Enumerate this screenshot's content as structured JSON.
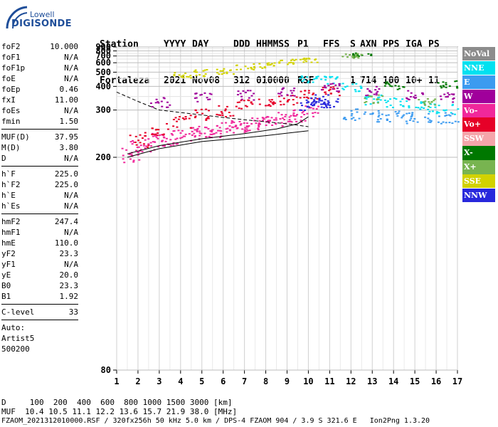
{
  "logo": {
    "brand": "Lowell",
    "product": "DIGISONDE"
  },
  "header": {
    "labels": [
      "Station",
      "YYYY",
      "DAY",
      "DDD",
      "HHMMSS",
      "P1",
      "FFS",
      "S",
      "AXN",
      "PPS",
      "IGA",
      "PS"
    ],
    "values": [
      "Fortaleza",
      "2021",
      "Nov08",
      "312",
      "010000",
      "RSF",
      "",
      "1",
      "714",
      "100",
      "10+",
      "11"
    ]
  },
  "params_block1": [
    {
      "name": "foF2",
      "value": "10.000"
    },
    {
      "name": "foF1",
      "value": "N/A"
    },
    {
      "name": "foF1p",
      "value": "N/A"
    },
    {
      "name": "foE",
      "value": "N/A"
    },
    {
      "name": "foEp",
      "value": "0.46"
    },
    {
      "name": "fxI",
      "value": "11.00"
    },
    {
      "name": "foEs",
      "value": "N/A"
    },
    {
      "name": "fmin",
      "value": "1.50"
    }
  ],
  "params_block2": [
    {
      "name": "MUF(D)",
      "value": "37.95"
    },
    {
      "name": "M(D)",
      "value": "3.80"
    },
    {
      "name": "D",
      "value": "N/A"
    }
  ],
  "params_block3": [
    {
      "name": "h`F",
      "value": "225.0"
    },
    {
      "name": "h`F2",
      "value": "225.0"
    },
    {
      "name": "h`E",
      "value": "N/A"
    },
    {
      "name": "h`Es",
      "value": "N/A"
    }
  ],
  "params_block4": [
    {
      "name": "hmF2",
      "value": "247.4"
    },
    {
      "name": "hmF1",
      "value": "N/A"
    },
    {
      "name": "hmE",
      "value": "110.0"
    },
    {
      "name": "yF2",
      "value": "23.3"
    },
    {
      "name": "yF1",
      "value": "N/A"
    },
    {
      "name": "yE",
      "value": "20.0"
    },
    {
      "name": "B0",
      "value": "23.3"
    },
    {
      "name": "B1",
      "value": "1.92"
    }
  ],
  "clevel": {
    "name": "C-level",
    "value": "33"
  },
  "auto": {
    "line1": "Auto:",
    "line2": "Artist5",
    "line3": "500200"
  },
  "legend": [
    {
      "label": "NoVal",
      "color": "#8c8c8c"
    },
    {
      "label": "NNE",
      "color": "#00e1f0"
    },
    {
      "label": "E",
      "color": "#3c9bf0"
    },
    {
      "label": "W",
      "color": "#a0009b"
    },
    {
      "label": "Vo-",
      "color": "#f0289b"
    },
    {
      "label": "Vo+",
      "color": "#e60028"
    },
    {
      "label": "SSW",
      "color": "#f5a5aa"
    },
    {
      "label": "X-",
      "color": "#007800"
    },
    {
      "label": "X+",
      "color": "#78b450"
    },
    {
      "label": "SSE",
      "color": "#d2d200"
    },
    {
      "label": "NNW",
      "color": "#2828dc"
    }
  ],
  "bottom": {
    "line1": "D     100  200  400  600  800 1000 1500 3000 [km]",
    "line2": "MUF  10.4 10.5 11.1 12.2 13.6 15.7 21.9 38.0 [MHz]",
    "line3": "FZAOM_2021312010000.RSF / 320fx256h 50 kHz 5.0 km / DPS-4 FZAOM 904 / 3.9 S 321.6 E   Ion2Png 1.3.20"
  },
  "chart_data": {
    "type": "scatter",
    "title": "",
    "xlabel": "",
    "ylabel": "",
    "xlim": [
      1,
      17
    ],
    "ylim": [
      80,
      900
    ],
    "x_ticks": [
      1,
      2,
      3,
      4,
      5,
      6,
      7,
      8,
      9,
      10,
      11,
      12,
      13,
      14,
      15,
      16,
      17
    ],
    "y_ticks": [
      80,
      200,
      300,
      400,
      500,
      600,
      700,
      800,
      900
    ],
    "y_scale": "reciprocal",
    "grid": true,
    "legend_position": "right",
    "series": [
      {
        "name": "Vo-",
        "points": [
          [
            1.6,
            205
          ],
          [
            2.0,
            215
          ],
          [
            2.5,
            222
          ],
          [
            3.0,
            228
          ],
          [
            3.5,
            232
          ],
          [
            4.0,
            236
          ],
          [
            4.5,
            240
          ],
          [
            5.0,
            245
          ],
          [
            5.5,
            248
          ],
          [
            6.0,
            252
          ],
          [
            6.5,
            256
          ],
          [
            7.0,
            260
          ],
          [
            7.5,
            264
          ],
          [
            8.0,
            268
          ],
          [
            8.5,
            272
          ],
          [
            9.0,
            278
          ],
          [
            9.5,
            285
          ],
          [
            10.0,
            300
          ]
        ]
      },
      {
        "name": "Vo+",
        "points": [
          [
            2.0,
            230
          ],
          [
            3.0,
            250
          ],
          [
            4.0,
            270
          ],
          [
            5.0,
            290
          ],
          [
            6.0,
            300
          ],
          [
            7.0,
            320
          ],
          [
            8.0,
            330
          ],
          [
            9.0,
            340
          ],
          [
            10.0,
            360
          ],
          [
            11.0,
            380
          ]
        ]
      },
      {
        "name": "NNE",
        "points": [
          [
            10.0,
            450
          ],
          [
            11.0,
            445
          ],
          [
            12.0,
            400
          ],
          [
            13.0,
            340
          ],
          [
            14.0,
            330
          ],
          [
            15.0,
            320
          ],
          [
            16.0,
            310
          ],
          [
            17.0,
            305
          ]
        ]
      },
      {
        "name": "E",
        "points": [
          [
            12.0,
            290
          ],
          [
            13.0,
            285
          ],
          [
            14.0,
            282
          ],
          [
            15.0,
            280
          ],
          [
            16.0,
            278
          ],
          [
            17.0,
            276
          ]
        ]
      },
      {
        "name": "NNW",
        "points": [
          [
            10.0,
            320
          ],
          [
            10.3,
            330
          ],
          [
            10.6,
            340
          ],
          [
            10.9,
            325
          ]
        ]
      },
      {
        "name": "SSE",
        "points": [
          [
            4.0,
            480
          ],
          [
            5.0,
            500
          ],
          [
            6.0,
            520
          ],
          [
            7.0,
            560
          ],
          [
            8.0,
            580
          ],
          [
            9.0,
            620
          ],
          [
            10.0,
            650
          ]
        ]
      },
      {
        "name": "W",
        "points": [
          [
            3.0,
            330
          ],
          [
            5.0,
            350
          ],
          [
            7.0,
            360
          ],
          [
            9.0,
            375
          ],
          [
            11.0,
            400
          ],
          [
            13.0,
            380
          ],
          [
            15.0,
            360
          ],
          [
            16.5,
            350
          ]
        ]
      },
      {
        "name": "X-",
        "points": [
          [
            12.5,
            730
          ],
          [
            14.0,
            410
          ],
          [
            16.5,
            420
          ]
        ]
      },
      {
        "name": "X+",
        "points": [
          [
            12.0,
            720
          ],
          [
            13.0,
            340
          ],
          [
            15.5,
            330
          ]
        ]
      }
    ],
    "trace_lines": [
      {
        "name": "virtual-height-trace",
        "points": [
          [
            1.5,
            200
          ],
          [
            3,
            213
          ],
          [
            5,
            225
          ],
          [
            7,
            232
          ],
          [
            8,
            236
          ],
          [
            9,
            241
          ],
          [
            10,
            246
          ]
        ]
      },
      {
        "name": "profile-trace",
        "points": [
          [
            1.5,
            205
          ],
          [
            3,
            218
          ],
          [
            5,
            230
          ],
          [
            7,
            240
          ],
          [
            8.5,
            250
          ],
          [
            9.5,
            262
          ],
          [
            10,
            280
          ]
        ]
      },
      {
        "name": "dashed-profile",
        "points": [
          [
            1.0,
            370
          ],
          [
            2.0,
            330
          ],
          [
            3.0,
            300
          ],
          [
            5.0,
            285
          ],
          [
            7.0,
            272
          ],
          [
            9.0,
            262
          ],
          [
            10.0,
            255
          ]
        ]
      }
    ]
  }
}
